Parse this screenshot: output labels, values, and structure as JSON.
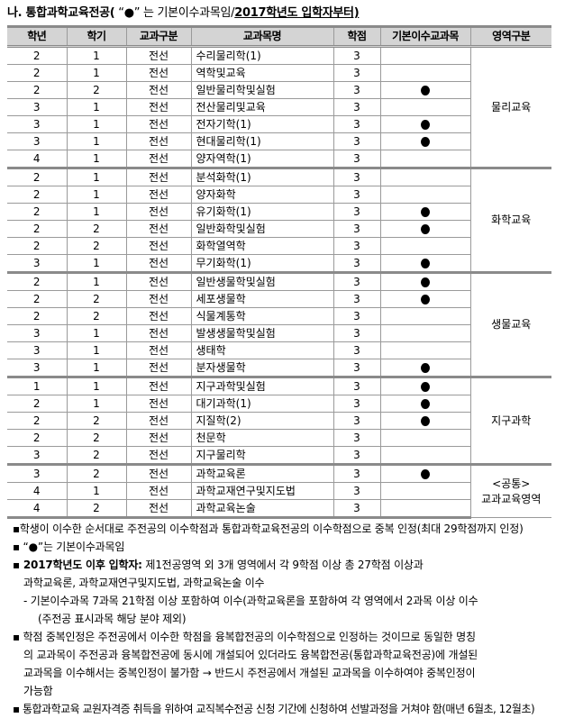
{
  "title": {
    "prefix": "나. 통합과학교육전공(",
    "middle": " “●” 는 기본이수과목임/",
    "emphasis": "2017학년도 입학자부터)"
  },
  "headers": [
    "학년",
    "학기",
    "교과구분",
    "교과목명",
    "학점",
    "기본이수교과목",
    "영역구분"
  ],
  "groups": [
    {
      "area": "물리교육",
      "rows": [
        [
          "2",
          "1",
          "전선",
          "수리물리학(1)",
          "3",
          false
        ],
        [
          "2",
          "1",
          "전선",
          "역학및교육",
          "3",
          false
        ],
        [
          "2",
          "2",
          "전선",
          "일반물리학및실험",
          "3",
          true
        ],
        [
          "3",
          "1",
          "전선",
          "전산물리및교육",
          "3",
          false
        ],
        [
          "3",
          "1",
          "전선",
          "전자기학(1)",
          "3",
          true
        ],
        [
          "3",
          "1",
          "전선",
          "현대물리학(1)",
          "3",
          true
        ],
        [
          "4",
          "1",
          "전선",
          "양자역학(1)",
          "3",
          false
        ]
      ]
    },
    {
      "area": "화학교육",
      "rows": [
        [
          "2",
          "1",
          "전선",
          "분석화학(1)",
          "3",
          false
        ],
        [
          "2",
          "1",
          "전선",
          "양자화학",
          "3",
          false
        ],
        [
          "2",
          "1",
          "전선",
          "유기화학(1)",
          "3",
          true
        ],
        [
          "2",
          "2",
          "전선",
          "일반화학및실험",
          "3",
          true
        ],
        [
          "2",
          "2",
          "전선",
          "화학열역학",
          "3",
          false
        ],
        [
          "3",
          "1",
          "전선",
          "무기화학(1)",
          "3",
          true
        ]
      ]
    },
    {
      "area": "생물교육",
      "rows": [
        [
          "2",
          "1",
          "전선",
          "일반생물학및실험",
          "3",
          true
        ],
        [
          "2",
          "2",
          "전선",
          "세포생물학",
          "3",
          true
        ],
        [
          "2",
          "2",
          "전선",
          "식물계통학",
          "3",
          false
        ],
        [
          "3",
          "1",
          "전선",
          "발생생물학및실험",
          "3",
          false
        ],
        [
          "3",
          "1",
          "전선",
          "생태학",
          "3",
          false
        ],
        [
          "3",
          "1",
          "전선",
          "분자생물학",
          "3",
          true
        ]
      ]
    },
    {
      "area": "지구과학",
      "rows": [
        [
          "1",
          "1",
          "전선",
          "지구과학및실험",
          "3",
          true
        ],
        [
          "2",
          "1",
          "전선",
          "대기과학(1)",
          "3",
          true
        ],
        [
          "2",
          "2",
          "전선",
          "지질학(2)",
          "3",
          true
        ],
        [
          "2",
          "2",
          "전선",
          "천문학",
          "3",
          false
        ],
        [
          "3",
          "2",
          "전선",
          "지구물리학",
          "3",
          false
        ]
      ]
    },
    {
      "area": "<공통>\n교과교육영역",
      "area_lines": [
        "<공통>",
        "교과교육영역"
      ],
      "rows": [
        [
          "3",
          "2",
          "전선",
          "과학교육론",
          "3",
          true
        ],
        [
          "4",
          "1",
          "전선",
          "과학교재연구및지도법",
          "3",
          false
        ],
        [
          "4",
          "2",
          "전선",
          "과학교육논술",
          "3",
          false
        ]
      ]
    }
  ],
  "required_marker_icon": "filled-circle",
  "notes": {
    "n1": "▪학생이 이수한 순서대로 주전공의 이수학점과 통합과학교육전공의 이수학점으로 중복 인정(최대 29학점까지 인정)",
    "n2": "▪ “●”는 기본이수과목임",
    "n3_bold": "▪ 2017학년도 이후 입학자:",
    "n3": " 제1전공영역 외 3개 영역에서 각 9학점 이상 총 27학점 이상과",
    "n3b": "과학교육론, 과학교재연구및지도법, 과학교육논술 이수",
    "n3c": "- 기본이수과목 7과목 21학점 이상 포함하여 이수(과학교육론을 포함하여 각 영역에서 2과목 이상 이수",
    "n3d": "(주전공 표시과목 해당 분야 제외)",
    "n4a": "▪ 학점 중복인정은 주전공에서 이수한 학점을 융복합전공의 이수학점으로 인정하는 것이므로 동일한 명칭",
    "n4b": "의 교과목이 주전공과 융복합전공에 동시에 개설되어 있더라도 융복합전공(통합과학교육전공)에 개설된",
    "n4c": "교과목을 이수해서는 중복인정이 불가함 → 반드시 주전공에서 개설된 교과목을 이수하여야 중복인정이",
    "n4d": "가능함",
    "n5": "▪ 통합과학교육 교원자격증 취득을 위하여 교직복수전공 신청 기간에 신청하여 선발과정을 거쳐야 함(매년 6월초, 12월초)"
  }
}
